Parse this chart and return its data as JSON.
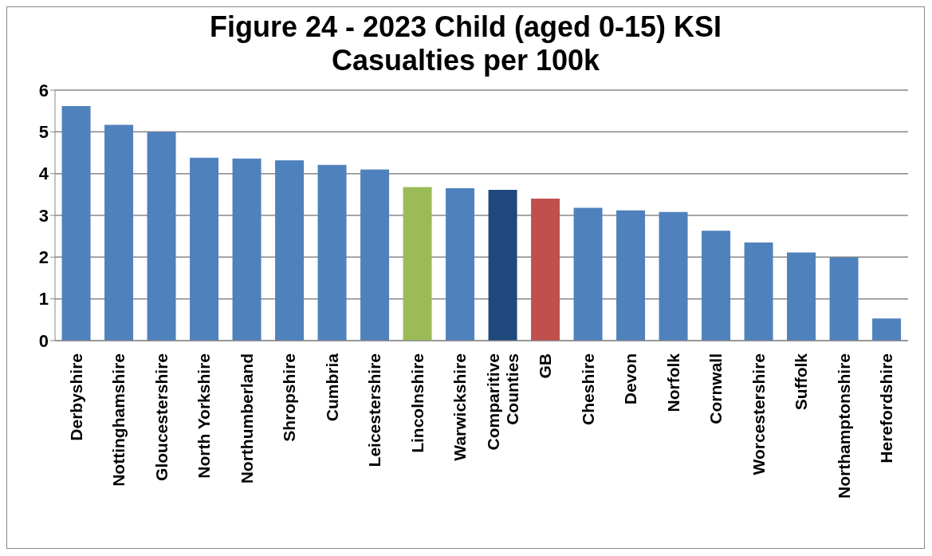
{
  "chart_data": {
    "type": "bar",
    "title": "Figure 24 - 2023 Child (aged 0-15) KSI Casualties per 100k",
    "categories": [
      "Derbyshire",
      "Nottinghamshire",
      "Gloucestershire",
      "North Yorkshire",
      "Northumberland",
      "Shropshire",
      "Cumbria",
      "Leicestershire",
      "Lincolnshire",
      "Warwickshire",
      "Comparitive Counties",
      "GB",
      "Cheshire",
      "Devon",
      "Norfolk",
      "Cornwall",
      "Worcestershire",
      "Suffolk",
      "Northamptonshire",
      "Herefordshire"
    ],
    "values": [
      5.62,
      5.17,
      5.0,
      4.38,
      4.36,
      4.32,
      4.21,
      4.1,
      3.68,
      3.65,
      3.61,
      3.4,
      3.18,
      3.12,
      3.08,
      2.63,
      2.35,
      2.11,
      1.99,
      0.53
    ],
    "colors": [
      "#4f81bd",
      "#4f81bd",
      "#4f81bd",
      "#4f81bd",
      "#4f81bd",
      "#4f81bd",
      "#4f81bd",
      "#4f81bd",
      "#9bbb59",
      "#4f81bd",
      "#1f497d",
      "#c0504d",
      "#4f81bd",
      "#4f81bd",
      "#4f81bd",
      "#4f81bd",
      "#4f81bd",
      "#4f81bd",
      "#4f81bd",
      "#4f81bd"
    ],
    "ylim": [
      0,
      6
    ],
    "yticks": [
      0,
      1,
      2,
      3,
      4,
      5,
      6
    ],
    "grid": "y"
  }
}
